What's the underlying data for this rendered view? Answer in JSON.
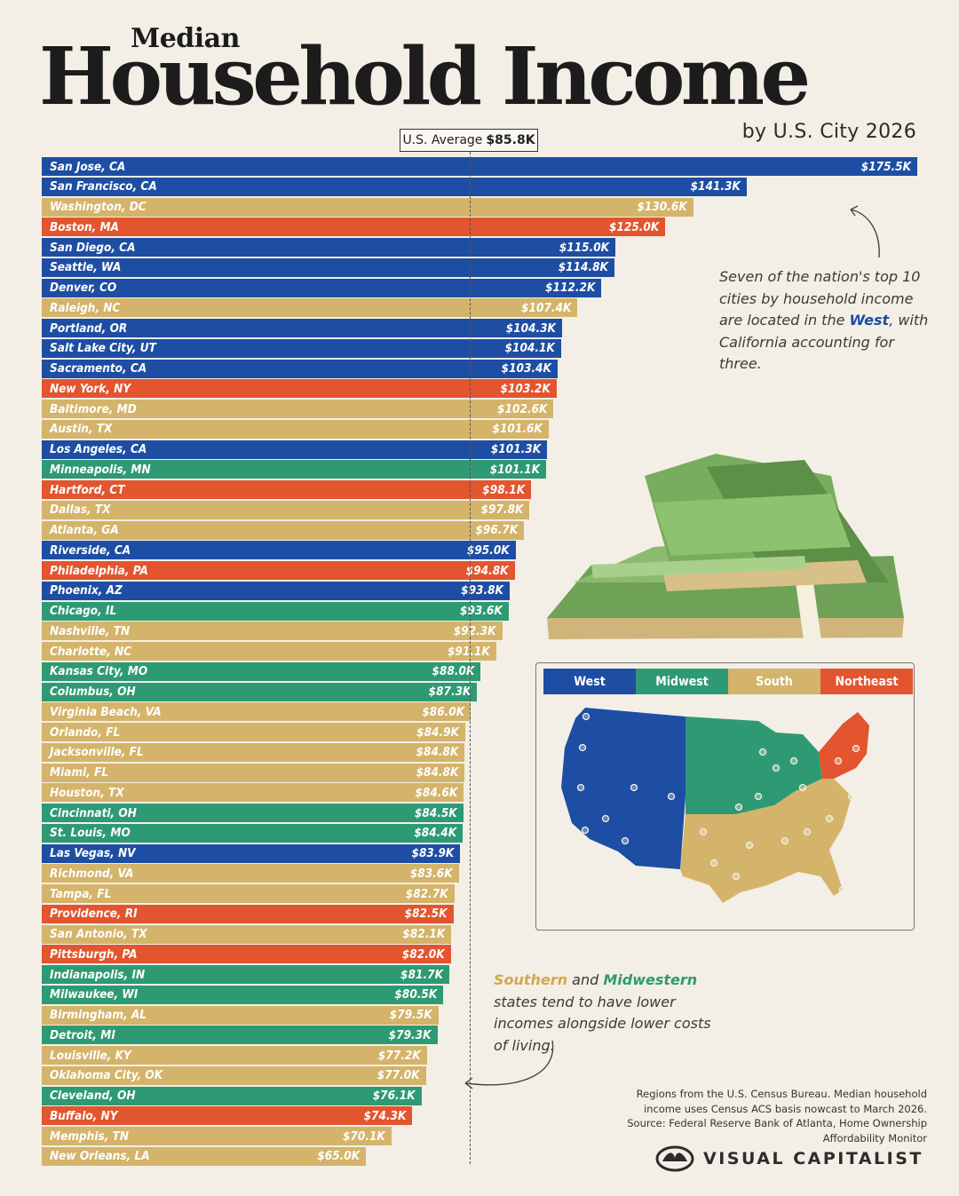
{
  "header": {
    "title_small": "Median",
    "title_big": "Household Income",
    "subtitle": "by U.S. City 2026"
  },
  "average": {
    "label_prefix": "U.S. Average",
    "label_value": "$85.8K",
    "value": 85.8
  },
  "colors": {
    "West": "#1e4ea3",
    "Midwest": "#2e9a74",
    "South": "#d4b46a",
    "Northeast": "#e2552f"
  },
  "legend": [
    "West",
    "Midwest",
    "South",
    "Northeast"
  ],
  "chart_data": {
    "type": "bar",
    "orientation": "horizontal",
    "title": "Median Household Income",
    "subtitle": "by U.S. City 2026",
    "categories": [
      "San Jose, CA",
      "San Francisco, CA",
      "Washington, DC",
      "Boston, MA",
      "San Diego, CA",
      "Seattle, WA",
      "Denver, CO",
      "Raleigh, NC",
      "Portland, OR",
      "Salt Lake City, UT",
      "Sacramento, CA",
      "New York, NY",
      "Baltimore, MD",
      "Austin, TX",
      "Los Angeles, CA",
      "Minneapolis, MN",
      "Hartford, CT",
      "Dallas, TX",
      "Atlanta, GA",
      "Riverside, CA",
      "Philadelphia, PA",
      "Phoenix, AZ",
      "Chicago, IL",
      "Nashville, TN",
      "Charlotte, NC",
      "Kansas City, MO",
      "Columbus, OH",
      "Virginia Beach, VA",
      "Orlando, FL",
      "Jacksonville, FL",
      "Miami, FL",
      "Houston, TX",
      "Cincinnati, OH",
      "St. Louis, MO",
      "Las Vegas, NV",
      "Richmond, VA",
      "Tampa, FL",
      "Providence, RI",
      "San Antonio, TX",
      "Pittsburgh, PA",
      "Indianapolis, IN",
      "Milwaukee, WI",
      "Birmingham, AL",
      "Detroit, MI",
      "Louisville, KY",
      "Oklahoma City, OK",
      "Cleveland, OH",
      "Buffalo, NY",
      "Memphis, TN",
      "New Orleans, LA"
    ],
    "values": [
      175.5,
      141.3,
      130.6,
      125.0,
      115.0,
      114.8,
      112.2,
      107.4,
      104.3,
      104.1,
      103.4,
      103.2,
      102.6,
      101.6,
      101.3,
      101.1,
      98.1,
      97.8,
      96.7,
      95.0,
      94.8,
      93.8,
      93.6,
      92.3,
      91.1,
      88.0,
      87.3,
      86.0,
      84.9,
      84.8,
      84.8,
      84.6,
      84.5,
      84.4,
      83.9,
      83.6,
      82.7,
      82.5,
      82.1,
      82.0,
      81.7,
      80.5,
      79.5,
      79.3,
      77.2,
      77.0,
      76.1,
      74.3,
      70.1,
      65.0
    ],
    "labels": [
      "$175.5K",
      "$141.3K",
      "$130.6K",
      "$125.0K",
      "$115.0K",
      "$114.8K",
      "$112.2K",
      "$107.4K",
      "$104.3K",
      "$104.1K",
      "$103.4K",
      "$103.2K",
      "$102.6K",
      "$101.6K",
      "$101.3K",
      "$101.1K",
      "$98.1K",
      "$97.8K",
      "$96.7K",
      "$95.0K",
      "$94.8K",
      "$93.8K",
      "$93.6K",
      "$92.3K",
      "$91.1K",
      "$88.0K",
      "$87.3K",
      "$86.0K",
      "$84.9K",
      "$84.8K",
      "$84.8K",
      "$84.6K",
      "$84.5K",
      "$84.4K",
      "$83.9K",
      "$83.6K",
      "$82.7K",
      "$82.5K",
      "$82.1K",
      "$82.0K",
      "$81.7K",
      "$80.5K",
      "$79.5K",
      "$79.3K",
      "$77.2K",
      "$77.0K",
      "$76.1K",
      "$74.3K",
      "$70.1K",
      "$65.0K"
    ],
    "regions": [
      "West",
      "West",
      "South",
      "Northeast",
      "West",
      "West",
      "West",
      "South",
      "West",
      "West",
      "West",
      "Northeast",
      "South",
      "South",
      "West",
      "Midwest",
      "Northeast",
      "South",
      "South",
      "West",
      "Northeast",
      "West",
      "Midwest",
      "South",
      "South",
      "Midwest",
      "Midwest",
      "South",
      "South",
      "South",
      "South",
      "South",
      "Midwest",
      "Midwest",
      "West",
      "South",
      "South",
      "Northeast",
      "South",
      "Northeast",
      "Midwest",
      "Midwest",
      "South",
      "Midwest",
      "South",
      "South",
      "Midwest",
      "Northeast",
      "South",
      "South"
    ],
    "reference_line": {
      "label": "U.S. Average",
      "value": 85.8
    }
  },
  "notes": {
    "note1_a": "Seven of the nation's top 10 cities by household income are located in the ",
    "note1_highlight": "West",
    "note1_b": ", with California accounting for three.",
    "note2_hl1": "Southern",
    "note2_a": " and ",
    "note2_hl2": "Midwestern",
    "note2_b": " states tend to have lower incomes alongside lower costs of living."
  },
  "source": "Regions from the U.S. Census Bureau. Median household income uses Census ACS basis nowcast to March 2026. Source: Federal Reserve Bank of Atlanta, Home Ownership Affordability Monitor",
  "brand": "VISUAL CAPITALIST"
}
